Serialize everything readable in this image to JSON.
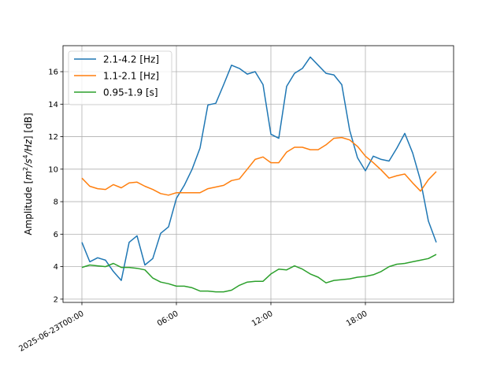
{
  "chart_data": {
    "type": "line",
    "ylabel_parts": {
      "prefix": "Amplitude [",
      "m": "m",
      "m_exp": "2",
      "mid": "/s",
      "s_exp": "4",
      "hz": "/Hz",
      "suffix": "] [dB]"
    },
    "xlabel": "",
    "xlim_hours": [
      -1.2,
      23.6
    ],
    "ylim": [
      1.8,
      17.6
    ],
    "x_ticks": [
      {
        "hour": 0,
        "label": "2025-06-23T00:00"
      },
      {
        "hour": 6,
        "label": "06:00"
      },
      {
        "hour": 12,
        "label": "12:00"
      },
      {
        "hour": 18,
        "label": "18:00"
      }
    ],
    "y_ticks": [
      2,
      4,
      6,
      8,
      10,
      12,
      14,
      16
    ],
    "grid": true,
    "legend_position": "top-left",
    "x_hours": [
      0,
      0.5,
      1,
      1.5,
      2,
      2.5,
      3,
      3.5,
      4,
      4.5,
      5,
      5.5,
      6,
      6.5,
      7,
      7.5,
      8,
      8.5,
      9,
      9.5,
      10,
      10.5,
      11,
      11.5,
      12,
      12.5,
      13,
      13.5,
      14,
      14.5,
      15,
      15.5,
      16,
      16.5,
      17,
      17.5,
      18,
      18.5,
      19,
      19.5,
      20,
      20.5,
      21,
      21.5,
      22,
      22.5
    ],
    "series": [
      {
        "name": "2.1-4.2 [Hz]",
        "color": "#1f77b4",
        "values": [
          5.5,
          4.3,
          4.55,
          4.4,
          3.7,
          3.15,
          5.5,
          5.9,
          4.1,
          4.5,
          6.05,
          6.45,
          8.2,
          9.0,
          10.0,
          11.3,
          13.95,
          14.05,
          15.2,
          16.4,
          16.2,
          15.85,
          16.0,
          15.2,
          12.15,
          11.9,
          15.1,
          15.9,
          16.2,
          16.9,
          16.4,
          15.9,
          15.8,
          15.2,
          12.4,
          10.7,
          9.9,
          10.8,
          10.6,
          10.5,
          11.3,
          12.2,
          11.0,
          9.3,
          6.8,
          5.5
        ]
      },
      {
        "name": "1.1-2.1 [Hz]",
        "color": "#ff7f0e",
        "values": [
          9.45,
          8.95,
          8.8,
          8.75,
          9.05,
          8.85,
          9.15,
          9.2,
          8.95,
          8.75,
          8.5,
          8.4,
          8.55,
          8.55,
          8.55,
          8.55,
          8.8,
          8.9,
          9.0,
          9.3,
          9.4,
          10.0,
          10.6,
          10.75,
          10.4,
          10.4,
          11.05,
          11.35,
          11.35,
          11.2,
          11.2,
          11.5,
          11.9,
          11.95,
          11.8,
          11.4,
          10.8,
          10.4,
          9.95,
          9.45,
          9.6,
          9.7,
          9.15,
          8.65,
          9.35,
          9.85
        ]
      },
      {
        "name": "0.95-1.9 [s]",
        "color": "#2ca02c",
        "values": [
          3.95,
          4.1,
          4.05,
          4.0,
          4.2,
          3.95,
          3.95,
          3.9,
          3.8,
          3.3,
          3.05,
          2.95,
          2.8,
          2.8,
          2.7,
          2.5,
          2.5,
          2.45,
          2.45,
          2.55,
          2.85,
          3.05,
          3.1,
          3.1,
          3.55,
          3.85,
          3.8,
          4.05,
          3.85,
          3.55,
          3.35,
          3.0,
          3.15,
          3.2,
          3.25,
          3.35,
          3.4,
          3.5,
          3.7,
          4.0,
          4.15,
          4.2,
          4.3,
          4.4,
          4.5,
          4.75
        ]
      }
    ]
  }
}
